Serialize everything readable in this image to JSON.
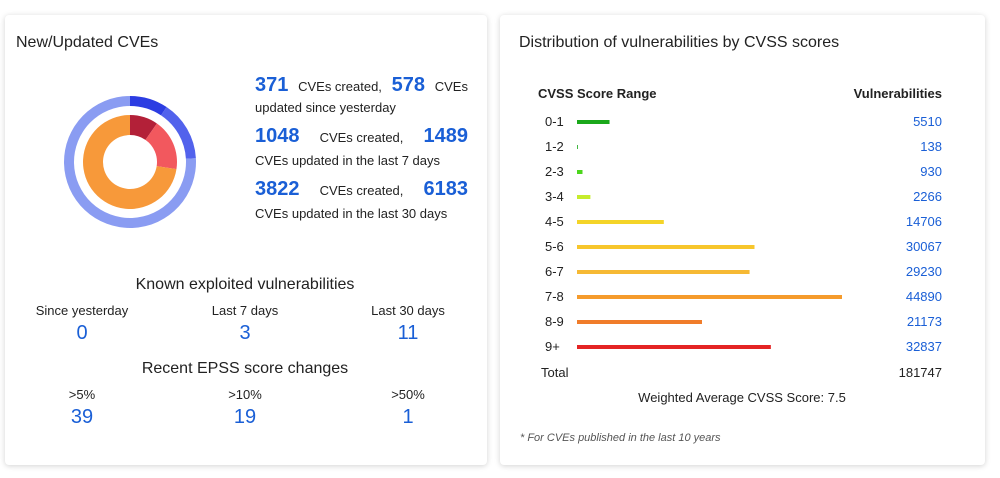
{
  "left_card": {
    "title": "New/Updated CVEs",
    "stats": [
      {
        "created": 371,
        "created_text": "CVEs created,",
        "updated": 578,
        "updated_text": "CVEs",
        "caption": "updated since yesterday"
      },
      {
        "created": 1048,
        "created_text": "CVEs created,",
        "updated": 1489,
        "caption": "CVEs updated in the last 7 days"
      },
      {
        "created": 3822,
        "created_text": "CVEs created,",
        "updated": 6183,
        "caption": "CVEs updated in the last 30 days"
      }
    ],
    "donut": {
      "inner_colors": [
        "#b32038",
        "#f2585e",
        "#f7993a"
      ],
      "outer_colors": [
        "#2c3de2",
        "#5262ec",
        "#8a9cf2"
      ]
    },
    "known_exploited": {
      "title": "Known exploited vulnerabilities",
      "columns": [
        {
          "label": "Since yesterday",
          "value": 0
        },
        {
          "label": "Last 7 days",
          "value": 3
        },
        {
          "label": "Last 30 days",
          "value": 11
        }
      ]
    },
    "epss": {
      "title": "Recent EPSS score changes",
      "columns": [
        {
          "label": ">5%",
          "value": 39
        },
        {
          "label": ">10%",
          "value": 19
        },
        {
          "label": ">50%",
          "value": 1
        }
      ]
    }
  },
  "right_card": {
    "title": "Distribution of vulnerabilities by CVSS scores",
    "header": {
      "range": "CVSS Score Range",
      "count": "Vulnerabilities"
    },
    "rows": [
      {
        "range": "0-1",
        "count": 5510,
        "color": "#1aa81a"
      },
      {
        "range": "1-2",
        "count": 138,
        "color": "#1aa81a"
      },
      {
        "range": "2-3",
        "count": 930,
        "color": "#4cd61c"
      },
      {
        "range": "3-4",
        "count": 2266,
        "color": "#c6ec2c"
      },
      {
        "range": "4-5",
        "count": 14706,
        "color": "#f4d428"
      },
      {
        "range": "5-6",
        "count": 30067,
        "color": "#f7c62c"
      },
      {
        "range": "6-7",
        "count": 29230,
        "color": "#f6b934"
      },
      {
        "range": "7-8",
        "count": 44890,
        "color": "#f59b2c"
      },
      {
        "range": "8-9",
        "count": 21173,
        "color": "#f07c2a"
      },
      {
        "range": "9+",
        "count": 32837,
        "color": "#e42424"
      }
    ],
    "total": {
      "label": "Total",
      "count": 181747
    },
    "weighted": "Weighted Average CVSS Score: 7.5",
    "footnote": "* For CVEs published in the last 10 years"
  }
}
